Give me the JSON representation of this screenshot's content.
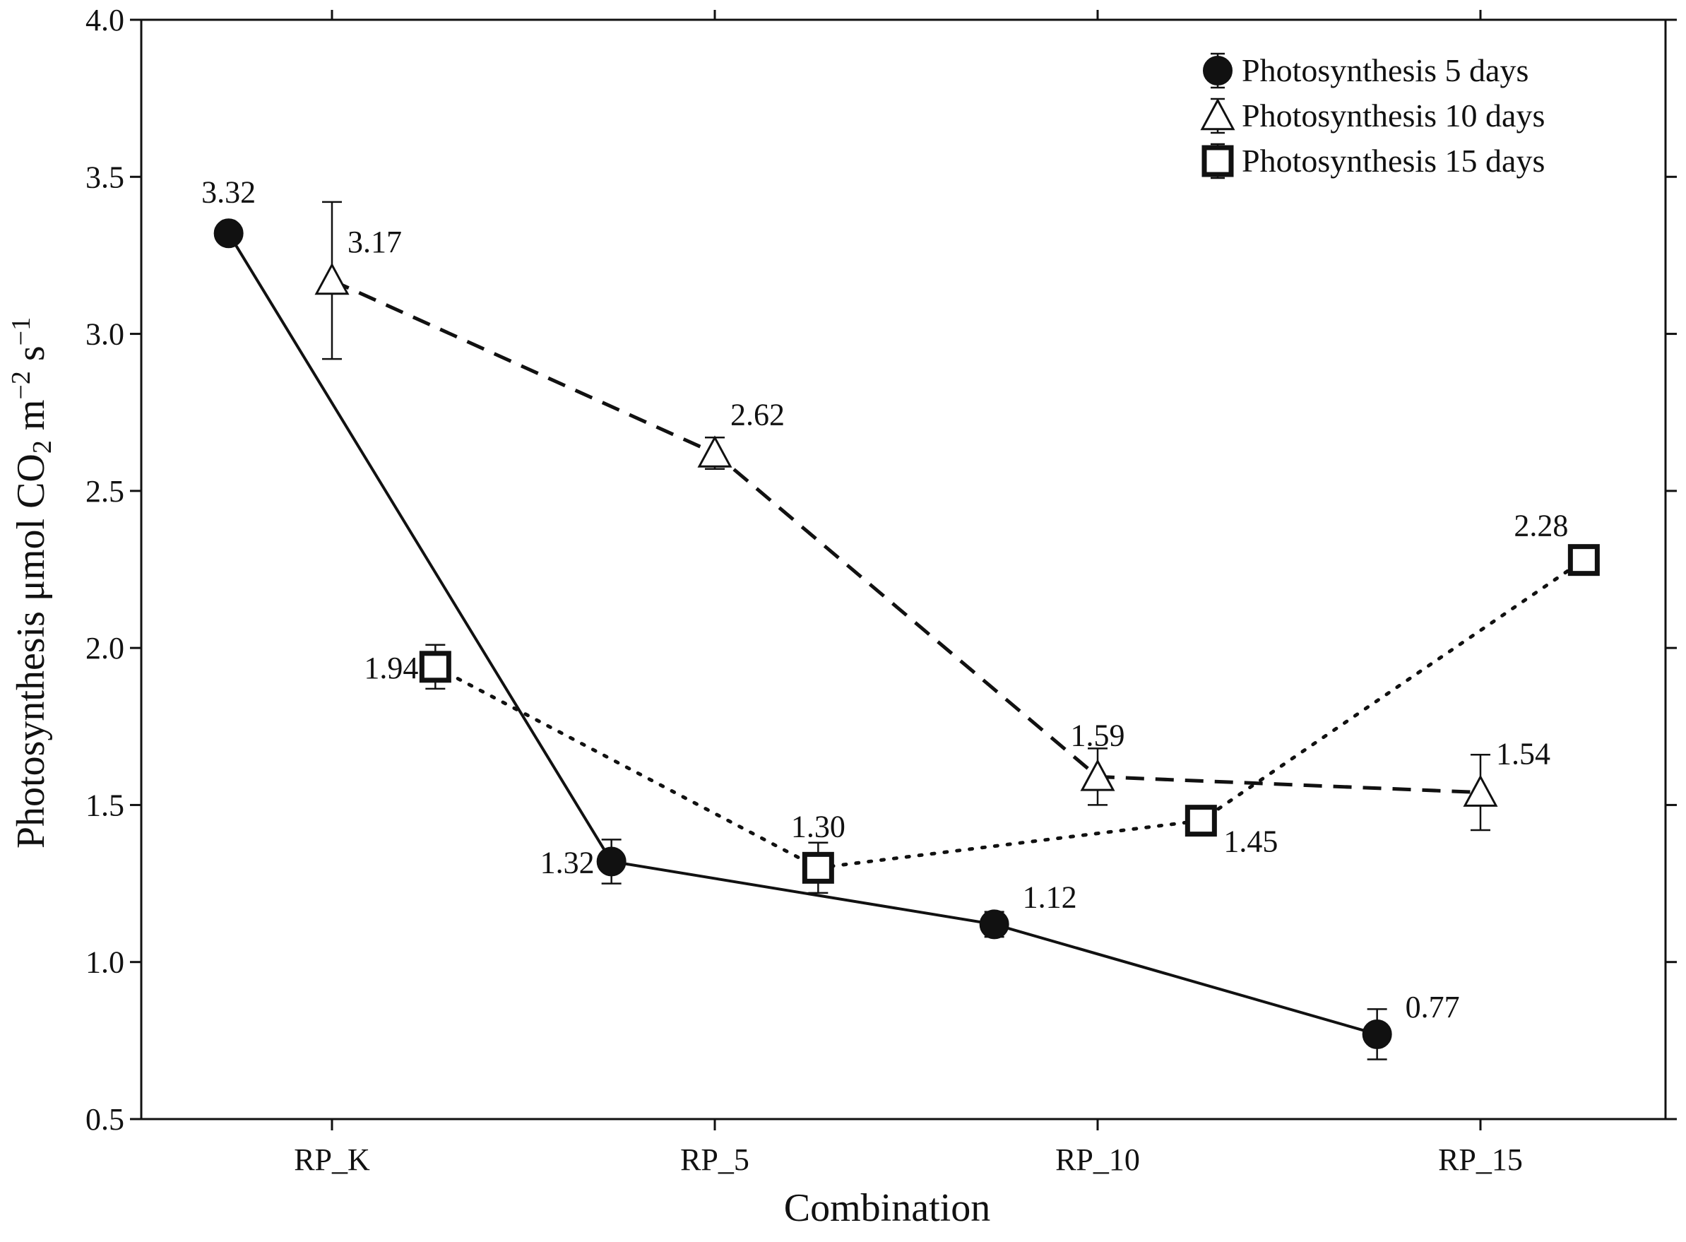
{
  "chart_data": {
    "type": "line",
    "title": "",
    "xlabel": "Combination",
    "ylabel": {
      "prefix": "Photosynthesis μmol CO",
      "sub": "2",
      "mid": " m",
      "sup1": "−2",
      "mid2": " s",
      "sup2": "−1"
    },
    "categories": [
      "RP_K",
      "RP_5",
      "RP_10",
      "RP_15"
    ],
    "ylim": [
      0.5,
      4.0
    ],
    "yticks": [
      "0.5",
      "1.0",
      "1.5",
      "2.0",
      "2.5",
      "3.0",
      "3.5",
      "4.0"
    ],
    "grid": false,
    "legend_position": "top-right",
    "series": [
      {
        "name": "Photosynthesis 5 days",
        "marker": "filled-circle",
        "line": "solid",
        "offset": -0.27,
        "values": [
          3.32,
          1.32,
          1.12,
          0.77
        ],
        "errors": [
          0.03,
          0.07,
          0.04,
          0.08
        ],
        "labels": [
          "3.32",
          "1.32",
          "1.12",
          "0.77"
        ],
        "label_pos": [
          "above",
          "left",
          "right",
          "right"
        ]
      },
      {
        "name": "Photosynthesis 10 days",
        "marker": "open-triangle",
        "line": "dashed",
        "offset": 0.0,
        "values": [
          3.17,
          2.62,
          1.59,
          1.54
        ],
        "errors": [
          0.25,
          0.05,
          0.09,
          0.12
        ],
        "labels": [
          "3.17",
          "2.62",
          "1.59",
          "1.54"
        ],
        "label_pos": [
          "right-up",
          "right-up",
          "above",
          "right-up"
        ]
      },
      {
        "name": "Photosynthesis 15 days",
        "marker": "open-square",
        "line": "dotted",
        "offset": 0.27,
        "values": [
          1.94,
          1.3,
          1.45,
          2.28
        ],
        "errors": [
          0.07,
          0.08,
          0.03,
          0.02
        ],
        "labels": [
          "1.94",
          "1.30",
          "1.45",
          "2.28"
        ],
        "label_pos": [
          "left",
          "above",
          "right-down",
          "left-up"
        ]
      }
    ]
  }
}
